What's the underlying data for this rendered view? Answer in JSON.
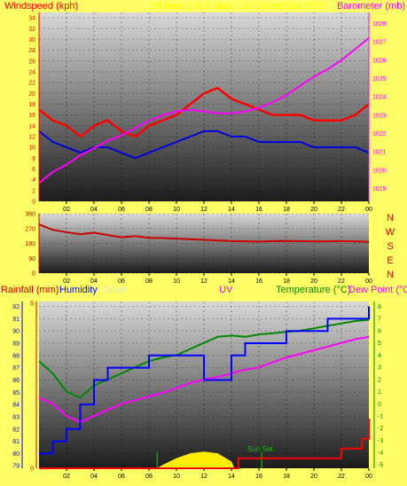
{
  "chart_data": [
    {
      "type": "line",
      "panel": "wind-barometer",
      "title": "",
      "subtitle": "24 hour graph data - 24 December 2008",
      "left_axis_label": "Windspeed (kph)",
      "right_axis_label": "Barometer (mb)",
      "x_ticks": [
        "02",
        "04",
        "06",
        "08",
        "10",
        "12",
        "14",
        "16",
        "18",
        "20",
        "22",
        "00"
      ],
      "left_ticks": [
        "0",
        "2",
        "4",
        "6",
        "8",
        "10",
        "12",
        "14",
        "16",
        "18",
        "20",
        "22",
        "24",
        "26",
        "28",
        "30",
        "32",
        "34"
      ],
      "right_ticks": [
        "1019",
        "1020",
        "1021",
        "1022",
        "1023",
        "1024",
        "1025",
        "1026",
        "1027",
        "1028"
      ],
      "ylim_left": [
        0,
        35
      ],
      "ylim_right": [
        1018.3,
        1028.6
      ],
      "colors": {
        "gust": "#ff0000",
        "avg": "#0000dd",
        "baro": "#ff00ff"
      },
      "series": [
        {
          "key": "gust",
          "axis": "left",
          "x": [
            0,
            1,
            2,
            3,
            4,
            5,
            6,
            7,
            8,
            9,
            10,
            11,
            12,
            13,
            14,
            15,
            16,
            17,
            18,
            19,
            20,
            21,
            22,
            23,
            24
          ],
          "values": [
            17,
            15,
            14,
            12,
            14,
            15,
            13,
            12,
            14,
            15,
            16,
            18,
            20,
            21,
            19,
            18,
            17,
            16,
            16,
            16,
            15,
            15,
            15,
            16,
            18
          ]
        },
        {
          "key": "avg",
          "axis": "left",
          "x": [
            0,
            1,
            2,
            3,
            4,
            5,
            6,
            7,
            8,
            9,
            10,
            11,
            12,
            13,
            14,
            15,
            16,
            17,
            18,
            19,
            20,
            21,
            22,
            23,
            24
          ],
          "values": [
            13,
            11,
            10,
            9,
            10,
            10,
            9,
            8,
            9,
            10,
            11,
            12,
            13,
            13,
            12,
            12,
            11,
            11,
            11,
            11,
            10,
            10,
            10,
            10,
            9
          ]
        },
        {
          "key": "baro",
          "axis": "right",
          "x": [
            0,
            1,
            2,
            3,
            4,
            5,
            6,
            7,
            8,
            9,
            10,
            11,
            12,
            13,
            14,
            15,
            16,
            17,
            18,
            19,
            20,
            21,
            22,
            23,
            24
          ],
          "values": [
            1019.3,
            1019.9,
            1020.3,
            1020.8,
            1021.2,
            1021.6,
            1021.9,
            1022.3,
            1022.7,
            1023.0,
            1023.2,
            1023.3,
            1023.2,
            1023.1,
            1023.1,
            1023.2,
            1023.4,
            1023.7,
            1024.1,
            1024.6,
            1025.1,
            1025.5,
            1026.0,
            1026.6,
            1027.2
          ]
        }
      ]
    },
    {
      "type": "line",
      "panel": "wind-direction",
      "x_ticks": [
        "02",
        "04",
        "06",
        "08",
        "10",
        "12",
        "14",
        "16",
        "18",
        "20",
        "22",
        "00"
      ],
      "left_ticks": [
        "0",
        "90",
        "180",
        "270",
        "360"
      ],
      "right_labels": [
        "N",
        "W",
        "S",
        "E",
        "N"
      ],
      "ylim": [
        0,
        360
      ],
      "color": "#cc0000",
      "x": [
        0,
        1,
        2,
        3,
        4,
        5,
        6,
        7,
        8,
        9,
        10,
        11,
        12,
        13,
        14,
        15,
        16,
        17,
        18,
        19,
        20,
        21,
        22,
        23,
        24
      ],
      "values": [
        295,
        262,
        248,
        236,
        245,
        231,
        217,
        224,
        214,
        213,
        209,
        206,
        202,
        198,
        194,
        193,
        191,
        194,
        195,
        194,
        192,
        193,
        194,
        192,
        190
      ]
    },
    {
      "type": "line",
      "panel": "rain-humidity-temp",
      "labels": {
        "rainfall": "Rainfall (mm)",
        "humidity": "Humidity",
        "solar": "Solar",
        "uv": "UV",
        "temperature": "Temperature (°C)",
        "dewpoint": "Dew Point (°C"
      },
      "annotations": {
        "sunset": "Sun Set"
      },
      "x_ticks": [
        "02",
        "04",
        "06",
        "08",
        "10",
        "12",
        "14",
        "16",
        "18",
        "20",
        "22",
        "00"
      ],
      "rain_ticks": [
        "0",
        "5"
      ],
      "humidity_ticks": [
        "79",
        "80",
        "81",
        "82",
        "83",
        "84",
        "85",
        "86",
        "87",
        "88",
        "89",
        "90",
        "91",
        "92"
      ],
      "temp_ticks": [
        "-5",
        "-4",
        "-3",
        "-2",
        "-1",
        "0",
        "1",
        "2",
        "3",
        "4",
        "5",
        "6",
        "7",
        "8"
      ],
      "ylim_humidity": [
        78.8,
        92.4
      ],
      "ylim_temp": [
        -5.3,
        8.4
      ],
      "colors": {
        "rain": "#ff0000",
        "humidity": "#0000ff",
        "temperature": "#008800",
        "dewpoint": "#ff00ff",
        "solar": "#ffee00"
      },
      "series": [
        {
          "key": "humidity",
          "axis": "humidity",
          "x": [
            0,
            1,
            2,
            3,
            4,
            5,
            6,
            7,
            8,
            9,
            10,
            11,
            12,
            13,
            14,
            15,
            16,
            17,
            18,
            19,
            20,
            21,
            22,
            23,
            24
          ],
          "values": [
            80,
            81,
            82,
            84,
            86,
            87,
            87,
            87,
            88,
            88,
            88,
            88,
            86,
            86,
            88,
            89,
            89,
            89,
            90,
            90,
            90,
            91,
            91,
            91,
            92
          ]
        },
        {
          "key": "temperature",
          "axis": "temp",
          "x": [
            0,
            1,
            2,
            3,
            4,
            5,
            6,
            7,
            8,
            9,
            10,
            11,
            12,
            13,
            14,
            15,
            16,
            17,
            18,
            19,
            20,
            21,
            22,
            23,
            24
          ],
          "values": [
            3.5,
            2.5,
            1.0,
            0.5,
            1.5,
            2.0,
            2.5,
            3.0,
            3.5,
            3.8,
            4.0,
            4.5,
            5.0,
            5.5,
            5.6,
            5.5,
            5.7,
            5.8,
            5.9,
            6.0,
            6.2,
            6.4,
            6.6,
            6.8,
            6.9
          ]
        },
        {
          "key": "dewpoint",
          "axis": "temp",
          "x": [
            0,
            1,
            2,
            3,
            4,
            5,
            6,
            7,
            8,
            9,
            10,
            11,
            12,
            13,
            14,
            15,
            16,
            17,
            18,
            19,
            20,
            21,
            22,
            23,
            24
          ],
          "values": [
            0.5,
            0.0,
            -1.0,
            -1.5,
            -1.0,
            -0.5,
            0.0,
            0.3,
            0.6,
            0.9,
            1.3,
            1.7,
            2.0,
            2.2,
            2.5,
            2.8,
            3.0,
            3.4,
            3.8,
            4.1,
            4.4,
            4.7,
            5.0,
            5.3,
            5.5
          ]
        },
        {
          "key": "rain",
          "axis": "rain",
          "x": [
            0,
            4,
            8,
            12,
            14.5,
            16,
            18,
            20,
            22,
            23.5,
            24
          ],
          "values": [
            0,
            0,
            0,
            0,
            0.3,
            0.3,
            0.3,
            0.3,
            0.6,
            0.9,
            1.5
          ]
        },
        {
          "key": "solar",
          "axis": "rain",
          "x": [
            8.6,
            9,
            10,
            11,
            12,
            13,
            14,
            14.2
          ],
          "values": [
            0,
            0.1,
            0.3,
            0.45,
            0.5,
            0.45,
            0.2,
            0
          ]
        }
      ]
    }
  ]
}
